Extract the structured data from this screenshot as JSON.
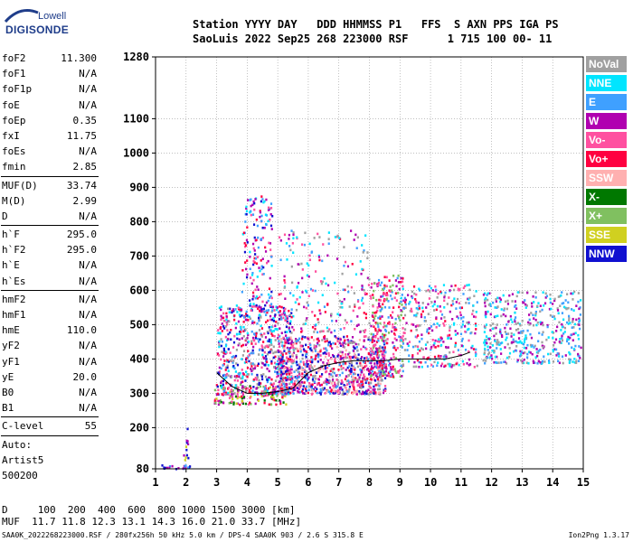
{
  "logo": {
    "line1": "Lowell",
    "line2": "DIGISONDE"
  },
  "header": {
    "line1": "Station YYYY DAY   DDD HHMMSS P1   FFS  S AXN PPS IGA PS",
    "line2": "SaoLuis 2022 Sep25 268 223000 RSF      1 715 100 00- 11"
  },
  "params": [
    {
      "k": "foF2",
      "v": "11.300"
    },
    {
      "k": "foF1",
      "v": "N/A"
    },
    {
      "k": "foF1p",
      "v": "N/A"
    },
    {
      "k": "foE",
      "v": "N/A"
    },
    {
      "k": "foEp",
      "v": "0.35"
    },
    {
      "k": "fxI",
      "v": "11.75"
    },
    {
      "k": "foEs",
      "v": "N/A"
    },
    {
      "k": "fmin",
      "v": "2.85"
    },
    {
      "k": "MUF(D)",
      "v": "33.74"
    },
    {
      "k": "M(D)",
      "v": "2.99"
    },
    {
      "k": "D",
      "v": "N/A"
    },
    {
      "k": "h`F",
      "v": "295.0"
    },
    {
      "k": "h`F2",
      "v": "295.0"
    },
    {
      "k": "h`E",
      "v": "N/A"
    },
    {
      "k": "h`Es",
      "v": "N/A"
    },
    {
      "k": "hmF2",
      "v": "N/A"
    },
    {
      "k": "hmF1",
      "v": "N/A"
    },
    {
      "k": "hmE",
      "v": "110.0"
    },
    {
      "k": "yF2",
      "v": "N/A"
    },
    {
      "k": "yF1",
      "v": "N/A"
    },
    {
      "k": "yE",
      "v": "20.0"
    },
    {
      "k": "B0",
      "v": "N/A"
    },
    {
      "k": "B1",
      "v": "N/A"
    },
    {
      "k": "C-level",
      "v": "55"
    }
  ],
  "auto": {
    "line1": "Auto:",
    "line2": "Artist5",
    "line3": "500200"
  },
  "legend": [
    {
      "name": "NoVal",
      "color": "#a0a0a0"
    },
    {
      "name": "NNE",
      "color": "#00e5ff"
    },
    {
      "name": "E",
      "color": "#3fa0ff"
    },
    {
      "name": "W",
      "color": "#b000b0"
    },
    {
      "name": "Vo-",
      "color": "#ff50a0"
    },
    {
      "name": "Vo+",
      "color": "#ff0040"
    },
    {
      "name": "SSW",
      "color": "#ffb0b0"
    },
    {
      "name": "X-",
      "color": "#007800"
    },
    {
      "name": "X+",
      "color": "#80c060"
    },
    {
      "name": "SSE",
      "color": "#d0d020"
    },
    {
      "name": "NNW",
      "color": "#1010d0"
    }
  ],
  "chart_data": {
    "type": "scatter",
    "xlim": [
      1,
      15
    ],
    "ylim": [
      80,
      1280
    ],
    "x_ticks": [
      "1",
      "2",
      "3",
      "4",
      "5",
      "6",
      "7",
      "8",
      "9",
      "10",
      "11",
      "12",
      "13",
      "14",
      "15"
    ],
    "y_ticks": [
      "80",
      "200",
      "300",
      "400",
      "500",
      "600",
      "700",
      "800",
      "900",
      "1000",
      "1100",
      "1280"
    ],
    "grid": true,
    "trace": {
      "x": [
        3.0,
        3.5,
        4.0,
        4.5,
        5.0,
        5.5,
        6.0,
        6.5,
        7.0,
        7.5,
        8.0,
        8.5,
        9.0,
        9.5,
        10.0,
        10.5,
        11.0,
        11.3
      ],
      "y": [
        360,
        320,
        300,
        300,
        305,
        315,
        360,
        380,
        390,
        395,
        395,
        395,
        400,
        400,
        400,
        400,
        410,
        420
      ]
    },
    "clusters": [
      {
        "x": [
          1.0,
          2.1
        ],
        "y": [
          82,
          95
        ],
        "n": 20,
        "colors": [
          2,
          3,
          10
        ]
      },
      {
        "x": [
          1.9,
          2.05
        ],
        "y": [
          100,
          200
        ],
        "n": 12,
        "colors": [
          3,
          10,
          9
        ]
      },
      {
        "x": [
          2.9,
          5.3
        ],
        "y": [
          270,
          330
        ],
        "n": 140,
        "colors": [
          7,
          8,
          9,
          5,
          4,
          3
        ]
      },
      {
        "x": [
          3.0,
          5.5
        ],
        "y": [
          300,
          560
        ],
        "n": 650,
        "colors": [
          3,
          5,
          4,
          10,
          2,
          1,
          0
        ]
      },
      {
        "x": [
          3.8,
          4.8
        ],
        "y": [
          540,
          880
        ],
        "n": 160,
        "colors": [
          3,
          5,
          4,
          2,
          10,
          1
        ]
      },
      {
        "x": [
          5.0,
          8.5
        ],
        "y": [
          300,
          470
        ],
        "n": 900,
        "colors": [
          5,
          4,
          3,
          6,
          2,
          0,
          10
        ]
      },
      {
        "x": [
          5.0,
          8.0
        ],
        "y": [
          480,
          780
        ],
        "n": 220,
        "colors": [
          3,
          4,
          5,
          2,
          1,
          0
        ]
      },
      {
        "x": [
          8.0,
          9.1
        ],
        "y": [
          350,
          650
        ],
        "n": 300,
        "colors": [
          5,
          4,
          3,
          8,
          2
        ]
      },
      {
        "x": [
          9.0,
          11.5
        ],
        "y": [
          380,
          620
        ],
        "n": 320,
        "colors": [
          5,
          4,
          3,
          1,
          2,
          0
        ]
      },
      {
        "x": [
          11.7,
          14.9
        ],
        "y": [
          390,
          600
        ],
        "n": 450,
        "colors": [
          1,
          2,
          0,
          3
        ]
      }
    ]
  },
  "bottom": {
    "line1": "D     100  200  400  600  800 1000 1500 3000 [km]",
    "line2": "MUF  11.7 11.8 12.3 13.1 14.3 16.0 21.0 33.7 [MHz]"
  },
  "footer": {
    "left": "SAA0K_2022268223000.RSF / 280fx256h 50 kHz 5.0 km / DPS-4 SAA0K 903 / 2.6 S 315.8 E",
    "right": "Ion2Png 1.3.17"
  }
}
